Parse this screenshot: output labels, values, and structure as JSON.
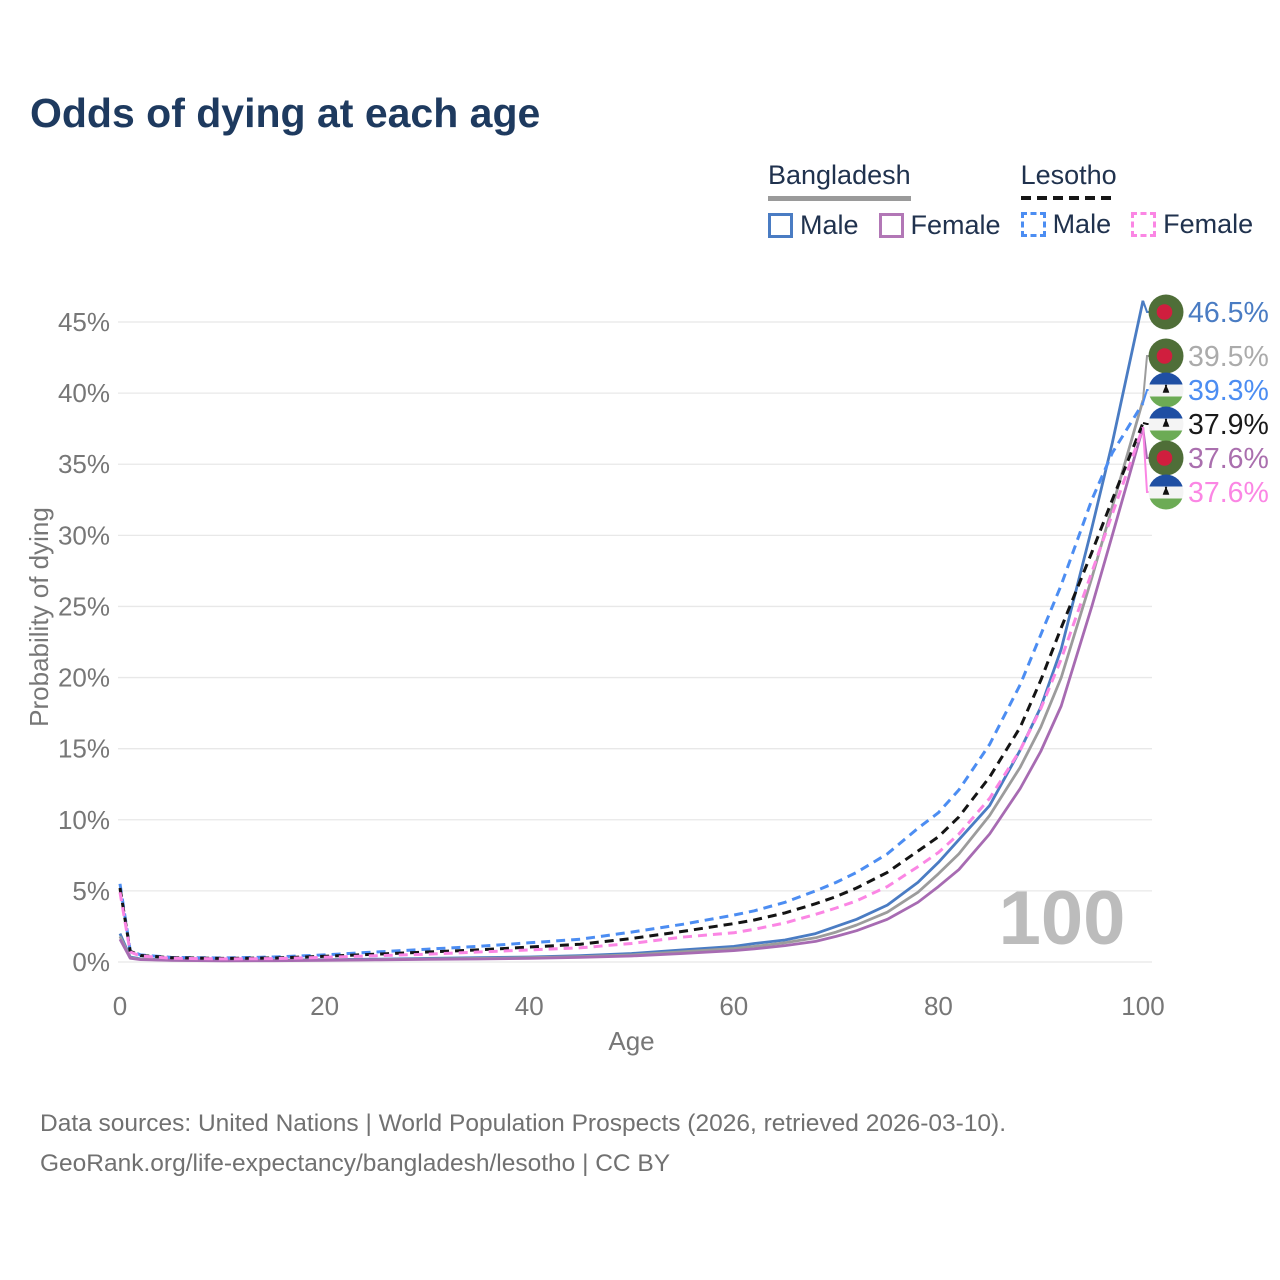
{
  "title": "Odds of dying at each age",
  "watermark": "100",
  "legend": {
    "groups": [
      {
        "name": "Bangladesh",
        "underline_style": "solid",
        "underline_color": "#9a9a9a",
        "items": [
          {
            "label": "Male",
            "color": "#4a7cc3",
            "dashed": false
          },
          {
            "label": "Female",
            "color": "#b277b6",
            "dashed": false
          }
        ]
      },
      {
        "name": "Lesotho",
        "underline_style": "dashed",
        "underline_color": "#161616",
        "items": [
          {
            "label": "Male",
            "color": "#4c8df2",
            "dashed": true
          },
          {
            "label": "Female",
            "color": "#fb86e4",
            "dashed": true
          }
        ]
      }
    ]
  },
  "footer": {
    "line1": "Data sources: United Nations | World Population Prospects (2026, retrieved 2026-03-10).",
    "line2": "GeoRank.org/life-expectancy/bangladesh/lesotho | CC BY"
  },
  "colors": {
    "title_navy": "#1e3a5f",
    "axis_text": "#777777",
    "gridline": "#e8e8e8",
    "watermark": "#bcbcbc",
    "flag_bd_green": "#4f6e38",
    "flag_bd_red": "#d01e3e",
    "flag_ls_blue": "#1f4fa3",
    "flag_ls_white": "#f4f4f4",
    "flag_ls_green": "#6cab55",
    "flag_ls_hat": "#111111"
  },
  "chart_data": {
    "type": "line",
    "title": "Odds of dying at each age",
    "xlabel": "Age",
    "ylabel": "Probability of dying",
    "y_unit": "percent",
    "xlim": [
      0,
      100
    ],
    "ylim": [
      0,
      47
    ],
    "grid": true,
    "x_ticks": [
      0,
      20,
      40,
      60,
      80,
      100
    ],
    "y_ticks": [
      "0%",
      "5%",
      "10%",
      "15%",
      "20%",
      "25%",
      "30%",
      "35%",
      "40%",
      "45%"
    ],
    "age_indicator": "100",
    "x": [
      0,
      1,
      2,
      5,
      10,
      15,
      20,
      25,
      30,
      35,
      40,
      45,
      50,
      55,
      60,
      62,
      65,
      68,
      70,
      72,
      75,
      78,
      80,
      82,
      85,
      88,
      90,
      92,
      95,
      97,
      100
    ],
    "series": [
      {
        "name": "Bangladesh Male",
        "country": "Bangladesh",
        "sex": "Male",
        "flag": "bd",
        "color": "#4a7cc3",
        "dash": false,
        "end_label": "46.5%",
        "end_label_color": "#4a7cc3",
        "values": [
          2.0,
          0.35,
          0.22,
          0.15,
          0.12,
          0.13,
          0.16,
          0.2,
          0.25,
          0.3,
          0.35,
          0.45,
          0.6,
          0.85,
          1.1,
          1.3,
          1.55,
          2.0,
          2.5,
          3.0,
          4.0,
          5.6,
          7.0,
          8.6,
          11.0,
          14.9,
          17.9,
          22.0,
          30.5,
          36.5,
          46.5
        ]
      },
      {
        "name": "Bangladesh",
        "country": "Bangladesh",
        "sex": "Both",
        "flag": "bd",
        "color": "#9c9c9c",
        "dash": false,
        "end_label": "39.5%",
        "end_label_color": "#ababab",
        "values": [
          1.8,
          0.3,
          0.2,
          0.13,
          0.1,
          0.11,
          0.14,
          0.17,
          0.21,
          0.25,
          0.3,
          0.38,
          0.5,
          0.72,
          0.95,
          1.1,
          1.35,
          1.7,
          2.1,
          2.6,
          3.5,
          4.9,
          6.2,
          7.6,
          10.3,
          13.7,
          16.5,
          20.0,
          27.0,
          32.0,
          39.5
        ]
      },
      {
        "name": "Bangladesh Female",
        "country": "Bangladesh",
        "sex": "Female",
        "flag": "bd",
        "color": "#a76bb2",
        "dash": false,
        "end_label": "37.6%",
        "end_label_color": "#aa6fae",
        "values": [
          1.6,
          0.27,
          0.17,
          0.11,
          0.08,
          0.09,
          0.12,
          0.15,
          0.18,
          0.21,
          0.25,
          0.32,
          0.42,
          0.6,
          0.8,
          0.92,
          1.15,
          1.45,
          1.8,
          2.2,
          3.0,
          4.2,
          5.3,
          6.5,
          9.0,
          12.2,
          14.8,
          18.0,
          25.0,
          30.0,
          37.6
        ]
      },
      {
        "name": "Lesotho Male",
        "country": "Lesotho",
        "sex": "Male",
        "flag": "ls",
        "color": "#4c8df2",
        "dash": true,
        "end_label": "39.3%",
        "end_label_color": "#4c8df2",
        "values": [
          5.5,
          0.8,
          0.5,
          0.32,
          0.28,
          0.35,
          0.5,
          0.7,
          0.9,
          1.1,
          1.35,
          1.6,
          2.1,
          2.65,
          3.3,
          3.6,
          4.2,
          5.0,
          5.6,
          6.3,
          7.6,
          9.4,
          10.5,
          12.1,
          15.3,
          19.5,
          23.0,
          26.5,
          32.5,
          35.8,
          39.3
        ]
      },
      {
        "name": "Lesotho",
        "country": "Lesotho",
        "sex": "Both",
        "flag": "ls",
        "color": "#141414",
        "dash": true,
        "end_label": "37.9%",
        "end_label_color": "#1a1a1a",
        "values": [
          5.2,
          0.75,
          0.46,
          0.3,
          0.25,
          0.28,
          0.4,
          0.55,
          0.7,
          0.85,
          1.05,
          1.25,
          1.65,
          2.15,
          2.7,
          2.95,
          3.45,
          4.1,
          4.6,
          5.2,
          6.3,
          7.8,
          8.8,
          10.2,
          13.0,
          16.5,
          19.8,
          23.5,
          28.8,
          32.5,
          37.9
        ]
      },
      {
        "name": "Lesotho Female",
        "country": "Lesotho",
        "sex": "Female",
        "flag": "ls",
        "color": "#fb86e4",
        "dash": true,
        "end_label": "37.6%",
        "end_label_color": "#fb86e4",
        "values": [
          4.9,
          0.7,
          0.42,
          0.27,
          0.22,
          0.24,
          0.33,
          0.44,
          0.55,
          0.7,
          0.85,
          1.0,
          1.3,
          1.75,
          2.05,
          2.3,
          2.75,
          3.35,
          3.8,
          4.3,
          5.3,
          6.7,
          7.7,
          9.0,
          11.5,
          14.9,
          17.8,
          21.3,
          27.4,
          31.5,
          37.6
        ]
      }
    ]
  }
}
